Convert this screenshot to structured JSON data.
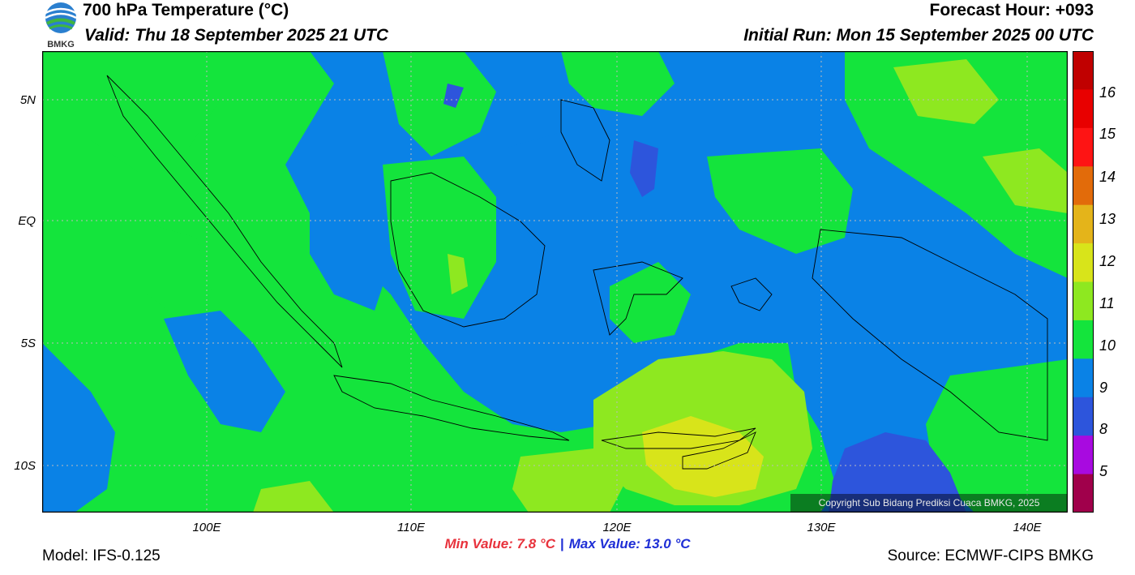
{
  "header": {
    "title": "700 hPa Temperature (°C)",
    "valid": "Valid: Thu 18 September 2025 21 UTC",
    "forecast_hour": "Forecast Hour: +093",
    "initial_run": "Initial Run: Mon 15 September 2025 00 UTC"
  },
  "logo": {
    "text": "BMKG",
    "icon": "bmkg-logo-icon"
  },
  "map": {
    "lat_labels": [
      "5N",
      "EQ",
      "5S",
      "10S"
    ],
    "lon_labels": [
      "100E",
      "110E",
      "120E",
      "130E",
      "140E"
    ],
    "copyright": "Copyright Sub Bidang Prediksi Cuaca BMKG, 2025",
    "gridlines": true
  },
  "colorbar": {
    "labels": [
      "16",
      "15",
      "14",
      "13",
      "12",
      "11",
      "10",
      "9",
      "8",
      "5"
    ],
    "colors": [
      "#c00000",
      "#e80000",
      "#fe1414",
      "#e26b0a",
      "#e4b41a",
      "#d8e41a",
      "#8ee820",
      "#14e43c",
      "#0a82e6",
      "#2d55dc",
      "#a80ae0",
      "#a0004b"
    ]
  },
  "palette": {
    "t9": "#0a82e6",
    "t10": "#14e43c",
    "t11": "#8ee820",
    "t12": "#d8e41a",
    "t8": "#2d55dc"
  },
  "footer": {
    "min_value": "Min Value: 7.8 °C",
    "separator": "|",
    "max_value": "Max Value: 13.0 °C",
    "model": "Model: IFS-0.125",
    "source": "Source: ECMWF-CIPS BMKG"
  }
}
